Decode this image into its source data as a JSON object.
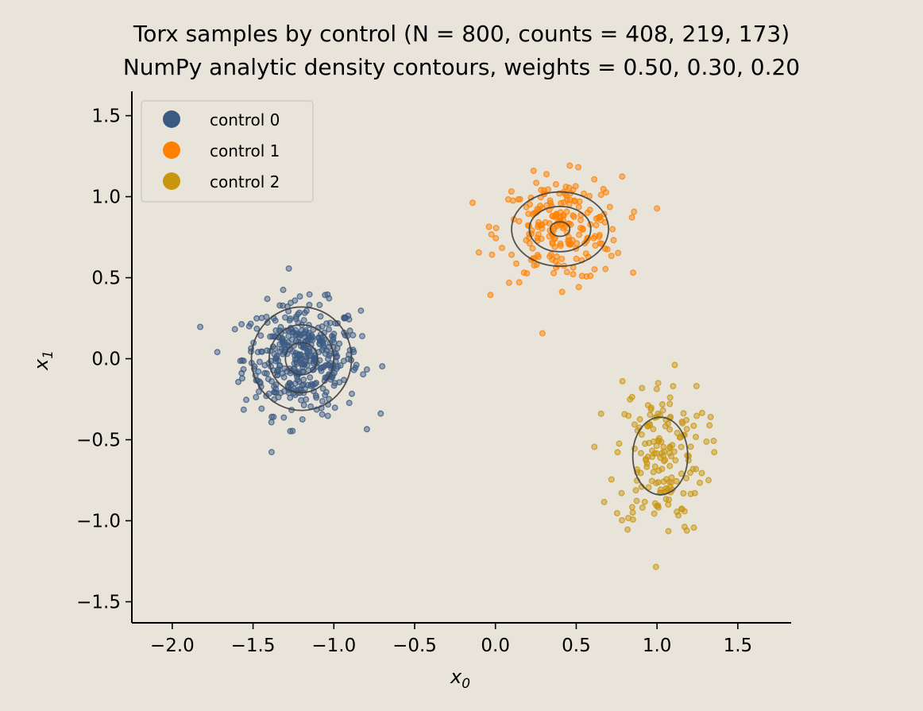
{
  "chart_data": {
    "type": "scatter",
    "title": "Torx samples by control (N = 800, counts = 408, 219, 173)",
    "subtitle": "NumPy analytic density contours, weights = 0.50, 0.30, 0.20",
    "xlabel": "x",
    "xlabel_sub": "0",
    "ylabel": "x",
    "ylabel_sub": "1",
    "xlim": [
      -2.25,
      1.83
    ],
    "ylim": [
      -1.63,
      1.65
    ],
    "xticks": [
      -2.0,
      -1.5,
      -1.0,
      -0.5,
      0.0,
      0.5,
      1.0,
      1.5
    ],
    "xtick_labels": [
      "−2.0",
      "−1.5",
      "−1.0",
      "−0.5",
      "0.0",
      "0.5",
      "1.0",
      "1.5"
    ],
    "yticks": [
      -1.5,
      -1.0,
      -0.5,
      0.0,
      0.5,
      1.0,
      1.5
    ],
    "ytick_labels": [
      "−1.5",
      "−1.0",
      "−0.5",
      "0.0",
      "0.5",
      "1.0",
      "1.5"
    ],
    "grid": false,
    "legend_position": "top-left",
    "series": [
      {
        "name": "control 0",
        "color": "#3b5a82",
        "count": 408,
        "weight": 0.5,
        "center": [
          -1.2,
          0.0
        ],
        "spread": [
          0.18,
          0.17
        ]
      },
      {
        "name": "control 1",
        "color": "#ff8000",
        "count": 219,
        "weight": 0.3,
        "center": [
          0.4,
          0.8
        ],
        "spread": [
          0.19,
          0.16
        ]
      },
      {
        "name": "control 2",
        "color": "#c8950f",
        "count": 173,
        "weight": 0.2,
        "center": [
          1.02,
          -0.6
        ],
        "spread": [
          0.14,
          0.24
        ]
      }
    ],
    "contours": [
      {
        "series": "control 0",
        "center": [
          -1.2,
          0.0
        ],
        "radii": [
          [
            0.31,
            0.32
          ],
          [
            0.2,
            0.21
          ],
          [
            0.1,
            0.1
          ]
        ]
      },
      {
        "series": "control 1",
        "center": [
          0.4,
          0.8
        ],
        "radii": [
          [
            0.3,
            0.23
          ],
          [
            0.19,
            0.14
          ],
          [
            0.06,
            0.045
          ]
        ]
      },
      {
        "series": "control 2",
        "center": [
          1.02,
          -0.6
        ],
        "radii": [
          [
            0.17,
            0.24
          ]
        ]
      }
    ]
  }
}
